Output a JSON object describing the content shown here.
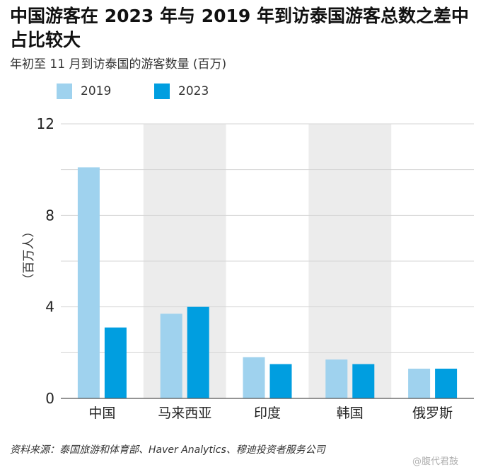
{
  "title": "中国游客在 2023 年与 2019 年到访泰国游客总数之差中占比较大",
  "subtitle": "年初至 11 月到访泰国的游客数量 (百万)",
  "source": "资料来源：泰国旅游和体育部、Haver Analytics、穆迪投资者服务公司",
  "watermark": "@腹代君鼓",
  "chart_data": {
    "type": "bar",
    "categories": [
      "中国",
      "马来西亚",
      "印度",
      "韩国",
      "俄罗斯"
    ],
    "series": [
      {
        "name": "2019",
        "color": "#9fd2ee",
        "values": [
          10.1,
          3.7,
          1.8,
          1.7,
          1.3
        ]
      },
      {
        "name": "2023",
        "color": "#009ee0",
        "values": [
          3.1,
          4.0,
          1.5,
          1.5,
          1.3
        ]
      }
    ],
    "ylabel": "（百万人）",
    "ylim": [
      0,
      12
    ],
    "yticks": [
      "0",
      "4",
      "8",
      "12"
    ],
    "grid": true,
    "legend_position": "top-left",
    "shaded_categories": [
      "马来西亚",
      "韩国"
    ]
  }
}
